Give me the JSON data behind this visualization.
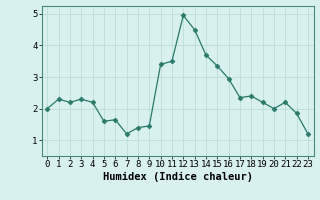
{
  "x": [
    0,
    1,
    2,
    3,
    4,
    5,
    6,
    7,
    8,
    9,
    10,
    11,
    12,
    13,
    14,
    15,
    16,
    17,
    18,
    19,
    20,
    21,
    22,
    23
  ],
  "y": [
    2.0,
    2.3,
    2.2,
    2.3,
    2.2,
    1.6,
    1.65,
    1.2,
    1.4,
    1.45,
    3.4,
    3.5,
    4.95,
    4.5,
    3.7,
    3.35,
    2.95,
    2.35,
    2.4,
    2.2,
    2.0,
    2.2,
    1.85,
    1.2
  ],
  "xlabel": "Humidex (Indice chaleur)",
  "ylim": [
    0.5,
    5.25
  ],
  "xlim": [
    -0.5,
    23.5
  ],
  "yticks": [
    1,
    2,
    3,
    4,
    5
  ],
  "xticks": [
    0,
    1,
    2,
    3,
    4,
    5,
    6,
    7,
    8,
    9,
    10,
    11,
    12,
    13,
    14,
    15,
    16,
    17,
    18,
    19,
    20,
    21,
    22,
    23
  ],
  "line_color": "#2a7a6a",
  "marker": "D",
  "marker_size": 2.5,
  "bg_color": "#d8f0ee",
  "grid_color": "#b8d8d4",
  "xlabel_fontsize": 7.5,
  "tick_fontsize": 6.5
}
